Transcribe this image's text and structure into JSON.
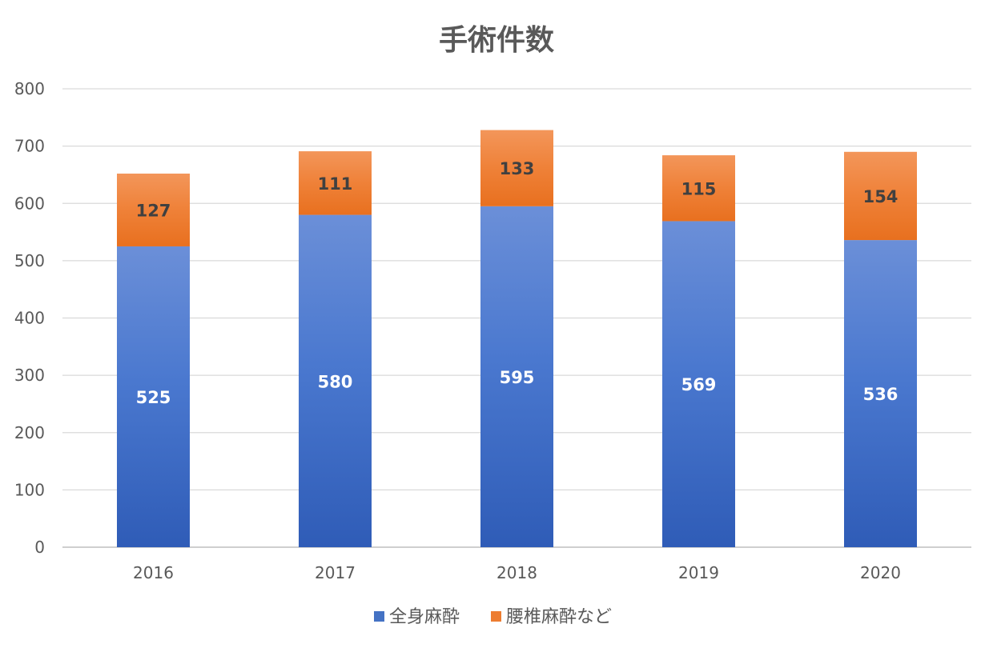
{
  "chart_data": {
    "type": "bar",
    "stacked": true,
    "title": "手術件数",
    "categories": [
      "2016",
      "2017",
      "2018",
      "2019",
      "2020"
    ],
    "series": [
      {
        "name": "全身麻酔",
        "values": [
          525,
          580,
          595,
          569,
          536
        ],
        "color": "#4472c4",
        "label_color": "#ffffff"
      },
      {
        "name": "腰椎麻酔など",
        "values": [
          127,
          111,
          133,
          115,
          154
        ],
        "color": "#ed7d31",
        "label_color": "#404040"
      }
    ],
    "ylim": [
      0,
      800
    ],
    "yticks": [
      0,
      100,
      200,
      300,
      400,
      500,
      600,
      700,
      800
    ],
    "grid": true,
    "legend_position": "bottom"
  }
}
